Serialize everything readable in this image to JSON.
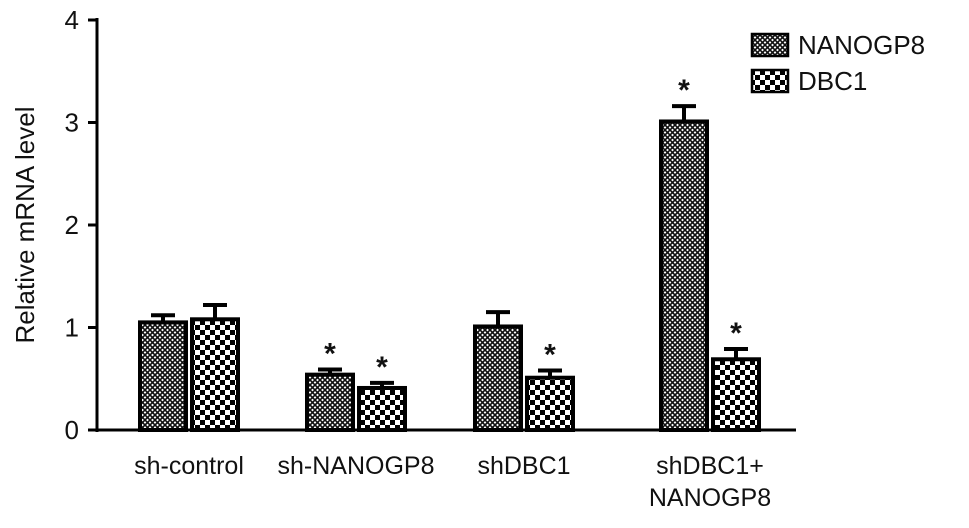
{
  "chart_data": {
    "type": "bar",
    "title": "",
    "xlabel": "",
    "ylabel": "Relative mRNA level",
    "ylim": [
      0,
      4
    ],
    "yticks": [
      "0",
      "1",
      "2",
      "3",
      "4"
    ],
    "legend_position": "top-right",
    "categories": [
      [
        "sh-control"
      ],
      [
        "sh-NANOGP8"
      ],
      [
        "shDBC1"
      ],
      [
        "shDBC1+",
        "NANOGP8"
      ]
    ],
    "series": [
      {
        "name": "NANOGP8",
        "pattern": "fine-crosshatch",
        "values": [
          1.05,
          0.54,
          1.01,
          3.01
        ],
        "errors": [
          0.07,
          0.05,
          0.14,
          0.15
        ],
        "significance": [
          "",
          "*",
          "",
          "*"
        ]
      },
      {
        "name": "DBC1",
        "pattern": "checkerboard",
        "values": [
          1.08,
          0.41,
          0.51,
          0.69
        ],
        "errors": [
          0.14,
          0.05,
          0.07,
          0.1
        ],
        "significance": [
          "",
          "*",
          "*",
          "*"
        ]
      }
    ],
    "colors": {
      "bar_stroke": "#000000",
      "fill_light": "#ffffff",
      "fill_dark": "#000000"
    }
  }
}
